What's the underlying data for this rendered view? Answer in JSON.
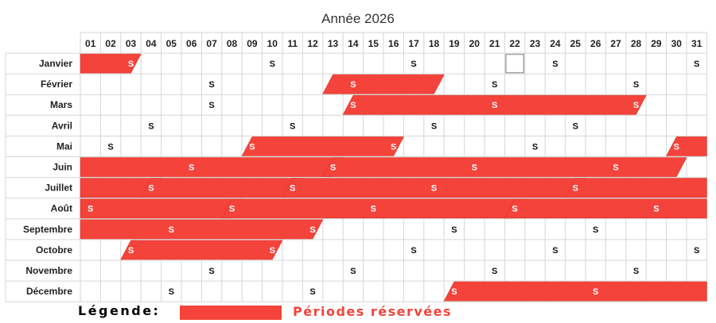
{
  "title": "Année 2026",
  "days": [
    "01",
    "02",
    "03",
    "04",
    "05",
    "06",
    "07",
    "08",
    "09",
    "10",
    "11",
    "12",
    "13",
    "14",
    "15",
    "16",
    "17",
    "18",
    "19",
    "20",
    "21",
    "22",
    "23",
    "24",
    "25",
    "26",
    "27",
    "28",
    "29",
    "30",
    "31"
  ],
  "saturday_marker": "S",
  "colors": {
    "reserved": "#f4433a",
    "grid": "#d6d6d6",
    "today_outline": "#9e9e9e"
  },
  "highlighted_cell": {
    "month": 0,
    "day": 22
  },
  "months": [
    {
      "name": "Janvier",
      "saturdays": [
        3,
        10,
        17,
        24,
        31
      ],
      "reserved": [
        [
          1,
          3
        ]
      ]
    },
    {
      "name": "Février",
      "saturdays": [
        7,
        14,
        21,
        28
      ],
      "reserved": [
        [
          13,
          18
        ]
      ]
    },
    {
      "name": "Mars",
      "saturdays": [
        7,
        14,
        21,
        28
      ],
      "reserved": [
        [
          14,
          28
        ]
      ]
    },
    {
      "name": "Avril",
      "saturdays": [
        4,
        11,
        18,
        25
      ],
      "reserved": []
    },
    {
      "name": "Mai",
      "saturdays": [
        2,
        9,
        16,
        23,
        30
      ],
      "reserved": [
        [
          9,
          16
        ],
        [
          30,
          31
        ]
      ]
    },
    {
      "name": "Juin",
      "saturdays": [
        6,
        13,
        20,
        27
      ],
      "reserved": [
        [
          1,
          13
        ],
        [
          13,
          30
        ]
      ]
    },
    {
      "name": "Juillet",
      "saturdays": [
        4,
        11,
        18,
        25
      ],
      "reserved": [
        [
          1,
          4
        ],
        [
          4,
          11
        ],
        [
          11,
          25
        ],
        [
          25,
          31
        ]
      ]
    },
    {
      "name": "Août",
      "saturdays": [
        1,
        8,
        15,
        22,
        29
      ],
      "reserved": [
        [
          1,
          8
        ],
        [
          8,
          22
        ],
        [
          22,
          31
        ]
      ]
    },
    {
      "name": "Septembre",
      "saturdays": [
        5,
        12,
        19,
        26
      ],
      "reserved": [
        [
          1,
          12
        ]
      ]
    },
    {
      "name": "Octobre",
      "saturdays": [
        3,
        10,
        17,
        24,
        31
      ],
      "reserved": [
        [
          3,
          10
        ]
      ]
    },
    {
      "name": "Novembre",
      "saturdays": [
        7,
        14,
        21,
        28
      ],
      "reserved": []
    },
    {
      "name": "Décembre",
      "saturdays": [
        5,
        12,
        19,
        26
      ],
      "reserved": [
        [
          19,
          31
        ]
      ]
    }
  ],
  "legend": {
    "label": "Légende:",
    "text": "Périodes réservées"
  }
}
